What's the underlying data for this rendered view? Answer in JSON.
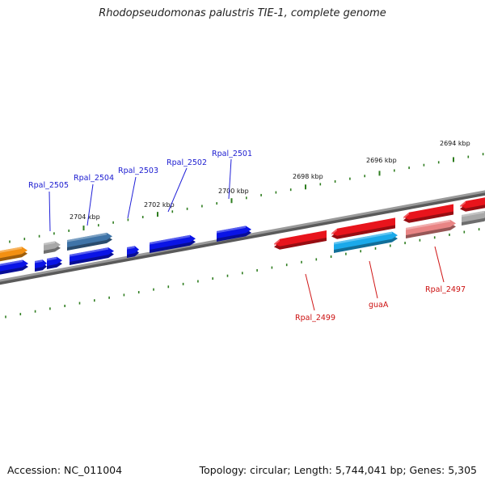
{
  "title": "Rhodopseudomonas palustris TIE-1, complete genome",
  "footer": {
    "accession": "Accession: NC_011004",
    "summary": "Topology: circular; Length: 5,744,041 bp; Genes: 5,305"
  },
  "kbp_labels": [
    "2694 kbp",
    "2696 kbp",
    "2698 kbp",
    "2700 kbp",
    "2702 kbp",
    "2704 kbp"
  ],
  "gene_labels": {
    "rpal_2505": "Rpal_2505",
    "rpal_2504": "Rpal_2504",
    "rpal_2503": "Rpal_2503",
    "rpal_2502": "Rpal_2502",
    "rpal_2501": "Rpal_2501",
    "rpal_2499": "Rpal_2499",
    "guaA": "guaA",
    "rpal_2497": "Rpal_2497"
  },
  "colors": {
    "backbone": "#7a7a7a",
    "tick": "#2e7d1f",
    "gene_blue": "#0a14e6",
    "gene_steelblue": "#3f74a8",
    "gene_red": "#e8141c",
    "gene_lightred": "#e98585",
    "gene_cyan": "#1aa9ea",
    "gene_orange": "#f39012",
    "gene_gray": "#a8a8a8",
    "label_blue": "#1a1ad0",
    "label_red": "#cc1010"
  }
}
